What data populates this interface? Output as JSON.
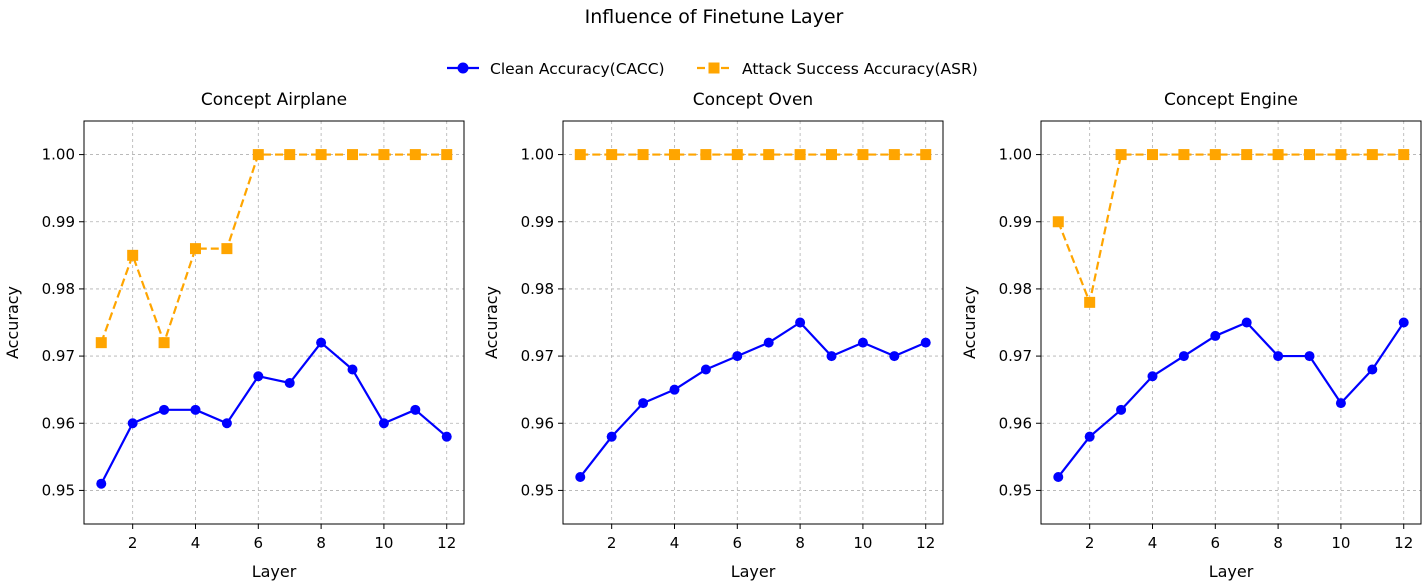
{
  "figure_title": "Influence of Finetune Layer",
  "legend": {
    "placement": "top-center",
    "items": [
      {
        "label": "Clean Accuracy(CACC)",
        "color": "#0000ff",
        "marker": "circle",
        "linestyle": "solid"
      },
      {
        "label": "Attack Success Accuracy(ASR)",
        "color": "#ffa500",
        "marker": "square",
        "linestyle": "dashed"
      }
    ]
  },
  "chart_data": [
    {
      "type": "line",
      "title": "Concept Airplane",
      "xlabel": "Layer",
      "ylabel": "Accuracy",
      "x": [
        1,
        2,
        3,
        4,
        5,
        6,
        7,
        8,
        9,
        10,
        11,
        12
      ],
      "xticks": [
        2,
        4,
        6,
        8,
        10,
        12
      ],
      "xtick_labels": [
        "2",
        "4",
        "6",
        "8",
        "10",
        "12"
      ],
      "yticks": [
        0.95,
        0.96,
        0.97,
        0.98,
        0.99,
        1.0
      ],
      "ytick_labels": [
        "0.95",
        "0.96",
        "0.97",
        "0.98",
        "0.99",
        "1.00"
      ],
      "xlim": [
        0.45,
        12.55
      ],
      "ylim": [
        0.945,
        1.005
      ],
      "grid": true,
      "series": [
        {
          "name": "Clean Accuracy(CACC)",
          "values": [
            0.951,
            0.96,
            0.962,
            0.962,
            0.96,
            0.967,
            0.966,
            0.972,
            0.968,
            0.96,
            0.962,
            0.958
          ]
        },
        {
          "name": "Attack Success Accuracy(ASR)",
          "values": [
            0.972,
            0.985,
            0.972,
            0.986,
            0.986,
            1.0,
            1.0,
            1.0,
            1.0,
            1.0,
            1.0,
            1.0
          ]
        }
      ]
    },
    {
      "type": "line",
      "title": "Concept Oven",
      "xlabel": "Layer",
      "ylabel": "Accuracy",
      "x": [
        1,
        2,
        3,
        4,
        5,
        6,
        7,
        8,
        9,
        10,
        11,
        12
      ],
      "xticks": [
        2,
        4,
        6,
        8,
        10,
        12
      ],
      "xtick_labels": [
        "2",
        "4",
        "6",
        "8",
        "10",
        "12"
      ],
      "yticks": [
        0.95,
        0.96,
        0.97,
        0.98,
        0.99,
        1.0
      ],
      "ytick_labels": [
        "0.95",
        "0.96",
        "0.97",
        "0.98",
        "0.99",
        "1.00"
      ],
      "xlim": [
        0.45,
        12.55
      ],
      "ylim": [
        0.945,
        1.005
      ],
      "grid": true,
      "series": [
        {
          "name": "Clean Accuracy(CACC)",
          "values": [
            0.952,
            0.958,
            0.963,
            0.965,
            0.968,
            0.97,
            0.972,
            0.975,
            0.97,
            0.972,
            0.97,
            0.972
          ]
        },
        {
          "name": "Attack Success Accuracy(ASR)",
          "values": [
            1.0,
            1.0,
            1.0,
            1.0,
            1.0,
            1.0,
            1.0,
            1.0,
            1.0,
            1.0,
            1.0,
            1.0
          ]
        }
      ]
    },
    {
      "type": "line",
      "title": "Concept Engine",
      "xlabel": "Layer",
      "ylabel": "Accuracy",
      "x": [
        1,
        2,
        3,
        4,
        5,
        6,
        7,
        8,
        9,
        10,
        11,
        12
      ],
      "xticks": [
        2,
        4,
        6,
        8,
        10,
        12
      ],
      "xtick_labels": [
        "2",
        "4",
        "6",
        "8",
        "10",
        "12"
      ],
      "yticks": [
        0.95,
        0.96,
        0.97,
        0.98,
        0.99,
        1.0
      ],
      "ytick_labels": [
        "0.95",
        "0.96",
        "0.97",
        "0.98",
        "0.99",
        "1.00"
      ],
      "xlim": [
        0.45,
        12.55
      ],
      "ylim": [
        0.945,
        1.005
      ],
      "grid": true,
      "series": [
        {
          "name": "Clean Accuracy(CACC)",
          "values": [
            0.952,
            0.958,
            0.962,
            0.967,
            0.97,
            0.973,
            0.975,
            0.97,
            0.97,
            0.963,
            0.968,
            0.975
          ]
        },
        {
          "name": "Attack Success Accuracy(ASR)",
          "values": [
            0.99,
            0.978,
            1.0,
            1.0,
            1.0,
            1.0,
            1.0,
            1.0,
            1.0,
            1.0,
            1.0,
            1.0
          ]
        }
      ]
    }
  ]
}
